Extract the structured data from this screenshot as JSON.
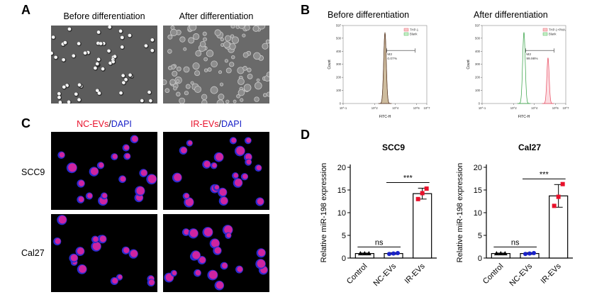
{
  "panels": {
    "A": {
      "letter": "A",
      "captions": [
        "Before differentiation",
        "After differentiation"
      ]
    },
    "B": {
      "letter": "B",
      "captions": [
        "Before differentiation",
        "After differentiation"
      ]
    },
    "C": {
      "letter": "C",
      "col_titles": [
        {
          "marker": "NC-EVs",
          "sep": "/",
          "stain": "DAPI"
        },
        {
          "marker": "IR-EVs",
          "sep": "/",
          "stain": "DAPI"
        }
      ],
      "rows": [
        "SCC9",
        "Cal27"
      ]
    },
    "D": {
      "letter": "D"
    }
  },
  "colors": {
    "red": "#e8102a",
    "blue": "#1a22c8",
    "black": "#000000",
    "flow_tan": "#b8a07a",
    "flow_green": "#2e9e3e",
    "flow_pink": "#e84a5f"
  },
  "chart_data": [
    {
      "type": "line",
      "title": "Before differentiation",
      "xlabel": "FITC-H",
      "ylabel": "Count",
      "x_scale": "log",
      "xlim": [
        0.1,
        10000000
      ],
      "ylim": [
        0,
        597
      ],
      "x_ticks": [
        "10^-1",
        "10^2",
        "10^4",
        "10^6",
        "10^7"
      ],
      "y_ticks": [
        0,
        100,
        200,
        300,
        400,
        500,
        597
      ],
      "legend": [
        "THP-1",
        "Blank"
      ],
      "gate_label": "M2",
      "gate_value": "0.07%",
      "series": [
        {
          "name": "THP-1",
          "peak_x": 1000,
          "peak_y": 540
        },
        {
          "name": "Blank",
          "peak_x": 1000,
          "peak_y": 545
        }
      ]
    },
    {
      "type": "line",
      "title": "After differentiation",
      "xlabel": "FITC-H",
      "ylabel": "Count",
      "x_scale": "log",
      "xlim": [
        0.1,
        10000000
      ],
      "ylim": [
        0,
        597
      ],
      "x_ticks": [
        "10^-1",
        "10^2",
        "10^4",
        "10^6",
        "10^7"
      ],
      "y_ticks": [
        0,
        100,
        200,
        300,
        400,
        500,
        597
      ],
      "legend": [
        "THP-1+PMA",
        "Blank"
      ],
      "gate_label": "M2",
      "gate_value": "99.98%",
      "series": [
        {
          "name": "THP-1+PMA",
          "peak_x": 200000,
          "peak_y": 350
        },
        {
          "name": "Blank",
          "peak_x": 1000,
          "peak_y": 545
        }
      ]
    },
    {
      "type": "bar",
      "title": "SCC9",
      "ylabel": "Relative miR-198 expression",
      "categories": [
        "Control",
        "NC-EVs",
        "IR-EVs"
      ],
      "values": [
        1.0,
        1.0,
        14.2
      ],
      "errors": [
        0.1,
        0.2,
        1.2
      ],
      "points": [
        [
          1.0,
          1.0,
          1.0
        ],
        [
          0.9,
          1.0,
          1.1
        ],
        [
          13.0,
          14.3,
          15.3
        ]
      ],
      "point_colors": [
        "#000000",
        "#1a22c8",
        "#e8102a"
      ],
      "ylim": [
        0,
        20
      ],
      "y_ticks": [
        0,
        5,
        10,
        15,
        20
      ],
      "significance": [
        {
          "from": 0,
          "to": 1,
          "label": "ns"
        },
        {
          "from": 1,
          "to": 2,
          "label": "***"
        }
      ]
    },
    {
      "type": "bar",
      "title": "Cal27",
      "ylabel": "Relative miR-198 expression",
      "categories": [
        "Control",
        "NC-EVs",
        "IR-EVs"
      ],
      "values": [
        1.0,
        1.0,
        13.7
      ],
      "errors": [
        0.1,
        0.2,
        2.5
      ],
      "points": [
        [
          1.0,
          1.0,
          1.0
        ],
        [
          0.9,
          1.0,
          1.1
        ],
        [
          11.5,
          13.5,
          16.3
        ]
      ],
      "point_colors": [
        "#000000",
        "#1a22c8",
        "#e8102a"
      ],
      "ylim": [
        0,
        20
      ],
      "y_ticks": [
        0,
        5,
        10,
        15,
        20
      ],
      "significance": [
        {
          "from": 0,
          "to": 1,
          "label": "ns"
        },
        {
          "from": 1,
          "to": 2,
          "label": "***"
        }
      ]
    }
  ]
}
